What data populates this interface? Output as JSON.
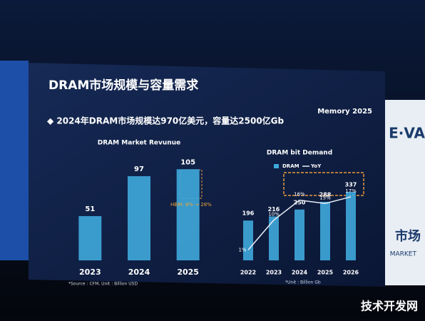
{
  "slide": {
    "title": "DRAM市场规模与容量需求",
    "logo": "Memory 2025",
    "subtitle": "◆ 2024年DRAM市场规模达970亿美元，容量达2500亿Gb",
    "side_top": "E·VA",
    "side_mid": "市场",
    "side_low": "MARKET",
    "watermark": "技术开发网"
  },
  "chart_data": [
    {
      "type": "bar",
      "title": "DRAM Market Revunue",
      "categories": [
        "2023",
        "2024",
        "2025"
      ],
      "values": [
        51,
        97,
        105
      ],
      "color": "#3fa9dc",
      "ylim": [
        0,
        120
      ],
      "annotation": "HBM: 8% → 28%",
      "note": "*Source : CFM, Unit : Billion USD"
    },
    {
      "type": "bar-line",
      "title": "DRAM bit Demand",
      "categories": [
        "2022",
        "2023",
        "2024",
        "2025",
        "2026"
      ],
      "series": [
        {
          "name": "DRAM",
          "color": "#3fa9dc",
          "values": [
            196,
            216,
            250,
            288,
            337
          ]
        },
        {
          "name": "YoY",
          "color": "#e8eef6",
          "axis": "y2",
          "values": [
            1,
            10,
            16,
            15,
            17
          ],
          "value_labels": [
            "1%",
            "10%",
            "16%",
            "15%",
            "17%"
          ]
        }
      ],
      "ylim": [
        0,
        400
      ],
      "y2lim": [
        0,
        20
      ],
      "note": "*Unit : Billion Gb"
    }
  ]
}
